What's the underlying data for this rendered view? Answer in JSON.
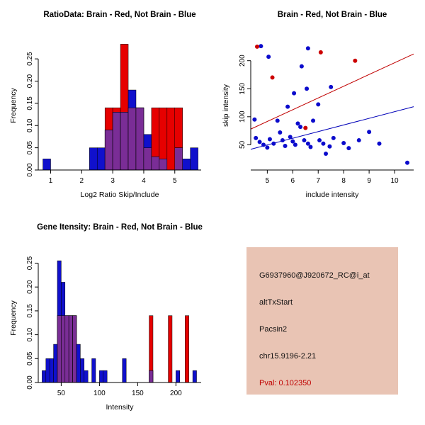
{
  "colors": {
    "hist_red": "#e60000",
    "hist_blue": "#1010cc",
    "hist_overlap": "#7a2d96",
    "axis": "#000000"
  },
  "chart_data": [
    {
      "id": "ratio_hist",
      "type": "bar",
      "subtype": "histogram-overlay",
      "title": "RatioData: Brain - Red, Not Brain - Blue",
      "xlabel": "Log2 Ratio Skip/Include",
      "ylabel": "Frequency",
      "xlim": [
        0.6,
        5.85
      ],
      "ylim": [
        0,
        0.29
      ],
      "xticks": [
        1,
        2,
        3,
        4,
        5
      ],
      "yticks": [
        0,
        0.05,
        0.1,
        0.15,
        0.2,
        0.25
      ],
      "ytick_labels": [
        "0.00",
        "0.05",
        "0.10",
        "0.15",
        "0.20",
        "0.25"
      ],
      "legend": {
        "red": "Brain",
        "blue": "Not Brain"
      },
      "bin_width": 0.25,
      "bins": [
        {
          "x": 0.75,
          "r": 0,
          "b": 0.025
        },
        {
          "x": 2.25,
          "r": 0,
          "b": 0.05
        },
        {
          "x": 2.5,
          "r": 0,
          "b": 0.05
        },
        {
          "x": 2.75,
          "r": 0.14,
          "b": 0.09
        },
        {
          "x": 3.0,
          "r": 0.14,
          "b": 0.13
        },
        {
          "x": 3.25,
          "r": 0.283,
          "b": 0.13
        },
        {
          "x": 3.5,
          "r": 0.14,
          "b": 0.18
        },
        {
          "x": 3.75,
          "r": 0.14,
          "b": 0.14
        },
        {
          "x": 4.0,
          "r": 0.05,
          "b": 0.08
        },
        {
          "x": 4.25,
          "r": 0.14,
          "b": 0.03
        },
        {
          "x": 4.5,
          "r": 0.14,
          "b": 0.025
        },
        {
          "x": 4.75,
          "r": 0.14,
          "b": 0
        },
        {
          "x": 5.0,
          "r": 0.14,
          "b": 0.05
        },
        {
          "x": 5.25,
          "r": 0,
          "b": 0.025
        },
        {
          "x": 5.5,
          "r": 0,
          "b": 0.05
        }
      ]
    },
    {
      "id": "scatter",
      "type": "scatter",
      "title": "Brain - Red, Not Brain - Blue",
      "xlabel": "include intensity",
      "ylabel": "skip intensity",
      "xlim": [
        4.35,
        10.75
      ],
      "ylim": [
        5,
        235
      ],
      "xticks": [
        5,
        6,
        7,
        8,
        9,
        10
      ],
      "yticks": [
        50,
        100,
        150,
        200
      ],
      "lines": [
        {
          "name": "brain-fit",
          "color": "#c00000",
          "x": [
            4.35,
            10.75
          ],
          "y": [
            78,
            212
          ]
        },
        {
          "name": "notbrain-fit",
          "color": "#0000b8",
          "x": [
            4.35,
            10.75
          ],
          "y": [
            42,
            118
          ]
        }
      ],
      "series": [
        {
          "name": "Not Brain",
          "color": "#0b0bcc",
          "points": [
            [
              4.75,
              226
            ],
            [
              6.6,
              222
            ],
            [
              5.05,
              207
            ],
            [
              6.35,
              190
            ],
            [
              6.05,
              142
            ],
            [
              6.55,
              150
            ],
            [
              7.5,
              153
            ],
            [
              7.0,
              122
            ],
            [
              5.8,
              118
            ],
            [
              4.5,
              95
            ],
            [
              4.55,
              62
            ],
            [
              4.7,
              55
            ],
            [
              4.85,
              50
            ],
            [
              5.0,
              45
            ],
            [
              5.1,
              60
            ],
            [
              5.25,
              52
            ],
            [
              5.4,
              93
            ],
            [
              5.5,
              72
            ],
            [
              5.6,
              58
            ],
            [
              5.7,
              48
            ],
            [
              5.9,
              64
            ],
            [
              6.0,
              56
            ],
            [
              6.1,
              50
            ],
            [
              6.2,
              88
            ],
            [
              6.3,
              82
            ],
            [
              6.45,
              58
            ],
            [
              6.6,
              52
            ],
            [
              6.7,
              46
            ],
            [
              6.8,
              93
            ],
            [
              7.05,
              58
            ],
            [
              7.2,
              52
            ],
            [
              7.3,
              34
            ],
            [
              7.45,
              47
            ],
            [
              7.6,
              62
            ],
            [
              8.0,
              53
            ],
            [
              8.2,
              44
            ],
            [
              8.6,
              58
            ],
            [
              9.0,
              73
            ],
            [
              9.4,
              52
            ],
            [
              10.5,
              18
            ]
          ]
        },
        {
          "name": "Brain",
          "color": "#cc0000",
          "points": [
            [
              4.6,
              225
            ],
            [
              5.2,
              170
            ],
            [
              7.1,
              215
            ],
            [
              8.45,
              200
            ],
            [
              6.5,
              80
            ]
          ]
        }
      ]
    },
    {
      "id": "gene_hist",
      "type": "bar",
      "subtype": "histogram-overlay",
      "title": "Gene Itensity: Brain - Red, Not Brain - Blue",
      "xlabel": "Intensity",
      "ylabel": "Frequency",
      "xlim": [
        20,
        233
      ],
      "ylim": [
        0,
        0.27
      ],
      "xticks": [
        50,
        100,
        150,
        200
      ],
      "yticks": [
        0,
        0.05,
        0.1,
        0.15,
        0.2,
        0.25
      ],
      "ytick_labels": [
        "0.00",
        "0.05",
        "0.10",
        "0.15",
        "0.20",
        "0.25"
      ],
      "legend": {
        "red": "Brain",
        "blue": "Not Brain"
      },
      "bin_width": 5,
      "bins": [
        {
          "x": 25,
          "r": 0,
          "b": 0.025
        },
        {
          "x": 30,
          "r": 0,
          "b": 0.05
        },
        {
          "x": 35,
          "r": 0,
          "b": 0.05
        },
        {
          "x": 40,
          "r": 0,
          "b": 0.08
        },
        {
          "x": 45,
          "r": 0.14,
          "b": 0.255
        },
        {
          "x": 50,
          "r": 0.14,
          "b": 0.21
        },
        {
          "x": 55,
          "r": 0.14,
          "b": 0.14
        },
        {
          "x": 60,
          "r": 0.14,
          "b": 0.14
        },
        {
          "x": 65,
          "r": 0.14,
          "b": 0.14
        },
        {
          "x": 70,
          "r": 0,
          "b": 0.08
        },
        {
          "x": 75,
          "r": 0,
          "b": 0.05
        },
        {
          "x": 80,
          "r": 0,
          "b": 0.025
        },
        {
          "x": 90,
          "r": 0,
          "b": 0.05
        },
        {
          "x": 100,
          "r": 0,
          "b": 0.025
        },
        {
          "x": 105,
          "r": 0,
          "b": 0.025
        },
        {
          "x": 130,
          "r": 0,
          "b": 0.05
        },
        {
          "x": 165,
          "r": 0.14,
          "b": 0.025
        },
        {
          "x": 190,
          "r": 0.14,
          "b": 0
        },
        {
          "x": 200,
          "r": 0,
          "b": 0.025
        },
        {
          "x": 212,
          "r": 0.14,
          "b": 0
        },
        {
          "x": 222,
          "r": 0,
          "b": 0.025
        }
      ]
    }
  ],
  "info_panel": {
    "bg": "#e9c4b4",
    "probe": "G6937960@J920672_RC@i_at",
    "event_type": "altTxStart",
    "gene": "Pacsin2",
    "location": "chr15.9196-2.21",
    "pval": "Pval: 0.102350",
    "pval_color": "#c00000",
    "text_color": "#111111"
  }
}
